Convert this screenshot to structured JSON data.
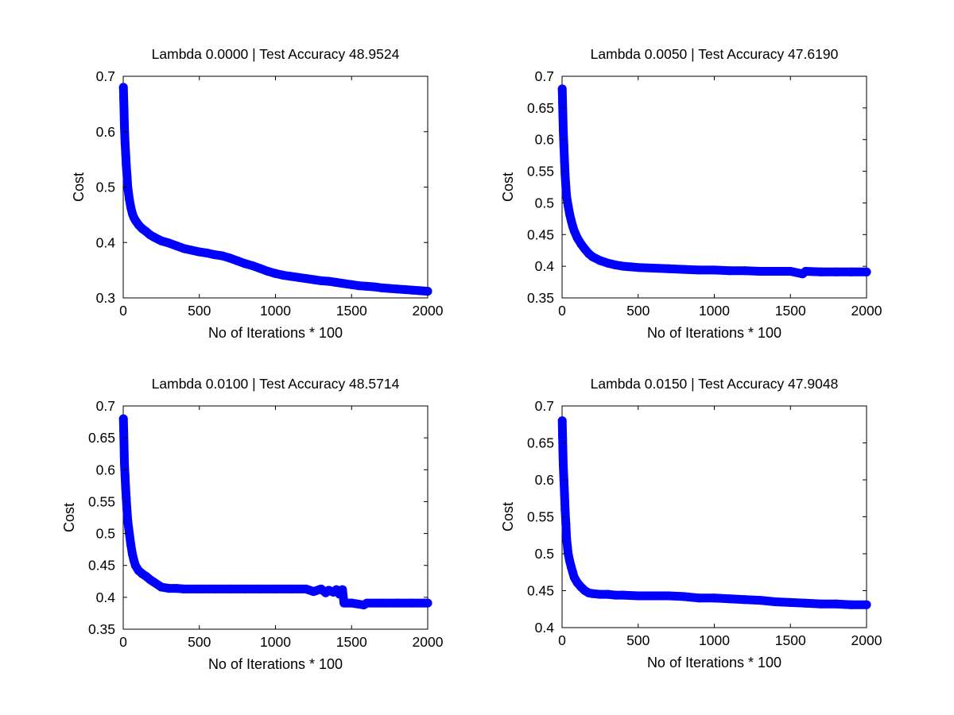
{
  "chart_data": [
    {
      "type": "scatter",
      "title": "Lambda 0.0000 | Test Accuracy 48.9524",
      "xlabel": "No of Iterations * 100",
      "ylabel": "Cost",
      "xlim": [
        0,
        2000
      ],
      "ylim": [
        0.3,
        0.7
      ],
      "xticks": [
        "0",
        "500",
        "1000",
        "1500",
        "2000"
      ],
      "yticks": [
        "0.3",
        "0.4",
        "0.5",
        "0.6",
        "0.7"
      ],
      "grid": false,
      "marker_color": "#0000ff",
      "series": [
        {
          "x": [
            1,
            3,
            5,
            8,
            12,
            16,
            20,
            25,
            30,
            40,
            50,
            60,
            70,
            80,
            100,
            125,
            150,
            175,
            200,
            250,
            300,
            350,
            400,
            450,
            500,
            550,
            600,
            650,
            700,
            750,
            800,
            850,
            900,
            950,
            1000,
            1050,
            1100,
            1150,
            1200,
            1250,
            1300,
            1350,
            1400,
            1450,
            1500,
            1550,
            1600,
            1650,
            1700,
            1750,
            1800,
            1850,
            1900,
            1950,
            2000
          ],
          "y": [
            0.68,
            0.66,
            0.64,
            0.61,
            0.58,
            0.56,
            0.54,
            0.52,
            0.5,
            0.478,
            0.463,
            0.452,
            0.445,
            0.44,
            0.432,
            0.425,
            0.42,
            0.414,
            0.41,
            0.403,
            0.399,
            0.394,
            0.389,
            0.386,
            0.383,
            0.381,
            0.378,
            0.376,
            0.372,
            0.367,
            0.362,
            0.358,
            0.353,
            0.348,
            0.344,
            0.341,
            0.339,
            0.337,
            0.335,
            0.333,
            0.331,
            0.33,
            0.328,
            0.326,
            0.324,
            0.322,
            0.321,
            0.32,
            0.318,
            0.317,
            0.316,
            0.315,
            0.314,
            0.313,
            0.312
          ]
        }
      ]
    },
    {
      "type": "scatter",
      "title": "Lambda 0.0050 | Test Accuracy 47.6190",
      "xlabel": "No of Iterations * 100",
      "ylabel": "Cost",
      "xlim": [
        0,
        2000
      ],
      "ylim": [
        0.35,
        0.7
      ],
      "xticks": [
        "0",
        "500",
        "1000",
        "1500",
        "2000"
      ],
      "yticks": [
        "0.35",
        "0.4",
        "0.45",
        "0.5",
        "0.55",
        "0.6",
        "0.65",
        "0.7"
      ],
      "grid": false,
      "marker_color": "#0000ff",
      "series": [
        {
          "x": [
            1,
            3,
            5,
            8,
            12,
            16,
            20,
            25,
            30,
            40,
            50,
            60,
            70,
            80,
            100,
            125,
            150,
            175,
            200,
            250,
            300,
            350,
            400,
            450,
            500,
            600,
            700,
            800,
            900,
            1000,
            1100,
            1200,
            1300,
            1400,
            1500,
            1580,
            1600,
            1700,
            1800,
            1900,
            2000
          ],
          "y": [
            0.68,
            0.66,
            0.64,
            0.615,
            0.59,
            0.565,
            0.545,
            0.525,
            0.51,
            0.495,
            0.482,
            0.472,
            0.463,
            0.456,
            0.445,
            0.435,
            0.427,
            0.42,
            0.415,
            0.409,
            0.405,
            0.402,
            0.4,
            0.399,
            0.398,
            0.397,
            0.396,
            0.395,
            0.394,
            0.394,
            0.393,
            0.393,
            0.392,
            0.392,
            0.392,
            0.388,
            0.392,
            0.391,
            0.391,
            0.391,
            0.391
          ]
        }
      ]
    },
    {
      "type": "scatter",
      "title": "Lambda 0.0100 | Test Accuracy 48.5714",
      "xlabel": "No of Iterations * 100",
      "ylabel": "Cost",
      "xlim": [
        0,
        2000
      ],
      "ylim": [
        0.35,
        0.7
      ],
      "xticks": [
        "0",
        "500",
        "1000",
        "1500",
        "2000"
      ],
      "yticks": [
        "0.35",
        "0.4",
        "0.45",
        "0.5",
        "0.55",
        "0.6",
        "0.65",
        "0.7"
      ],
      "grid": false,
      "marker_color": "#0000ff",
      "series": [
        {
          "x": [
            1,
            3,
            5,
            8,
            12,
            16,
            20,
            25,
            30,
            40,
            50,
            60,
            70,
            80,
            100,
            125,
            150,
            175,
            200,
            250,
            300,
            350,
            400,
            500,
            600,
            700,
            800,
            900,
            1000,
            1100,
            1200,
            1250,
            1300,
            1330,
            1350,
            1380,
            1400,
            1420,
            1440,
            1450,
            1500,
            1580,
            1600,
            1700,
            1800,
            1900,
            2000
          ],
          "y": [
            0.68,
            0.66,
            0.64,
            0.61,
            0.59,
            0.57,
            0.555,
            0.535,
            0.52,
            0.5,
            0.482,
            0.468,
            0.458,
            0.45,
            0.442,
            0.437,
            0.433,
            0.428,
            0.424,
            0.416,
            0.414,
            0.414,
            0.413,
            0.413,
            0.413,
            0.413,
            0.413,
            0.413,
            0.413,
            0.413,
            0.413,
            0.409,
            0.413,
            0.407,
            0.411,
            0.408,
            0.412,
            0.405,
            0.412,
            0.391,
            0.391,
            0.388,
            0.391,
            0.391,
            0.391,
            0.391,
            0.391
          ]
        }
      ]
    },
    {
      "type": "scatter",
      "title": "Lambda 0.0150 | Test Accuracy 47.9048",
      "xlabel": "No of Iterations * 100",
      "ylabel": "Cost",
      "xlim": [
        0,
        2000
      ],
      "ylim": [
        0.4,
        0.7
      ],
      "xticks": [
        "0",
        "500",
        "1000",
        "1500",
        "2000"
      ],
      "yticks": [
        "0.4",
        "0.45",
        "0.5",
        "0.55",
        "0.6",
        "0.65",
        "0.7"
      ],
      "grid": false,
      "marker_color": "#0000ff",
      "series": [
        {
          "x": [
            1,
            3,
            5,
            8,
            12,
            16,
            20,
            25,
            30,
            40,
            50,
            60,
            70,
            80,
            100,
            125,
            150,
            175,
            200,
            250,
            300,
            350,
            400,
            500,
            600,
            700,
            800,
            900,
            1000,
            1100,
            1200,
            1300,
            1400,
            1500,
            1600,
            1700,
            1800,
            1900,
            2000
          ],
          "y": [
            0.68,
            0.66,
            0.64,
            0.62,
            0.6,
            0.58,
            0.56,
            0.54,
            0.52,
            0.5,
            0.49,
            0.482,
            0.475,
            0.468,
            0.461,
            0.455,
            0.45,
            0.447,
            0.446,
            0.445,
            0.445,
            0.444,
            0.444,
            0.443,
            0.443,
            0.443,
            0.442,
            0.44,
            0.44,
            0.439,
            0.438,
            0.437,
            0.435,
            0.434,
            0.433,
            0.432,
            0.432,
            0.431,
            0.431
          ]
        }
      ]
    }
  ]
}
